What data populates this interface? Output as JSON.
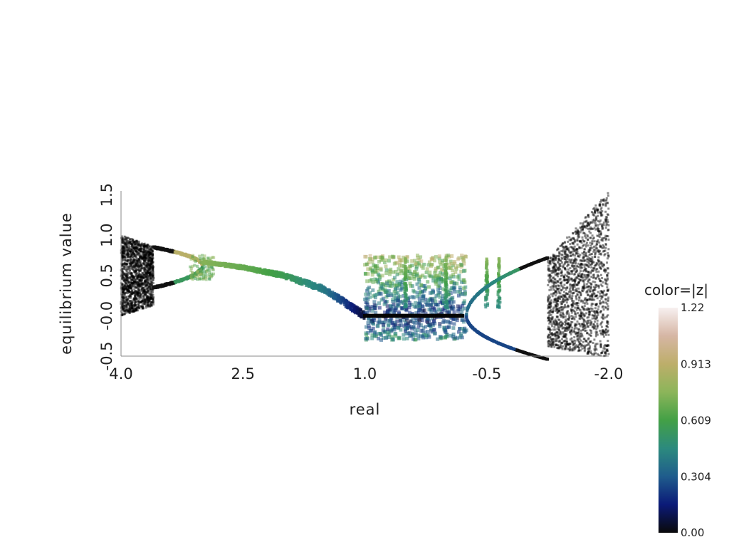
{
  "chart_data": {
    "type": "scatter",
    "xlabel": "real",
    "ylabel": "equilibrium value",
    "x_axis_reversed": true,
    "xlim": [
      4.0,
      -2.0
    ],
    "ylim": [
      -0.5,
      1.55
    ],
    "xticks": [
      {
        "value": 4.0,
        "label": "4.0"
      },
      {
        "value": 2.5,
        "label": "2.5"
      },
      {
        "value": 1.0,
        "label": "1.0"
      },
      {
        "value": -0.5,
        "label": "-0.5"
      },
      {
        "value": -2.0,
        "label": "-2.0"
      }
    ],
    "yticks": [
      {
        "value": -0.5,
        "label": "-0.5"
      },
      {
        "value": 0.0,
        "label": "-0.0"
      },
      {
        "value": 0.5,
        "label": "0.5"
      },
      {
        "value": 1.0,
        "label": "1.0"
      },
      {
        "value": 1.5,
        "label": "1.5"
      }
    ],
    "grid": false,
    "colorbar": {
      "title": "color=|z|",
      "range": [
        0.0,
        1.22
      ],
      "ticks": [
        {
          "value": 0.0,
          "label": "0.00"
        },
        {
          "value": 0.304,
          "label": "0.304"
        },
        {
          "value": 0.609,
          "label": "0.609"
        },
        {
          "value": 0.913,
          "label": "0.913"
        },
        {
          "value": 1.22,
          "label": "1.22"
        }
      ],
      "colormap": [
        "#0a0a0a",
        "#0b1a78",
        "#1f5c8c",
        "#2c8a7e",
        "#43a046",
        "#8cb55a",
        "#bdae6a",
        "#d6b6a4",
        "#f7f0f0"
      ]
    },
    "regions": {
      "chaotic_left": {
        "x_range": [
          4.0,
          3.6
        ],
        "y_range": [
          0.0,
          1.0
        ],
        "color": "#000000"
      },
      "period_two_left": {
        "x_range": [
          3.6,
          3.0
        ],
        "upper": [
          0.85,
          0.62
        ],
        "lower": [
          0.35,
          0.62
        ]
      },
      "fixed_point_curve": [
        {
          "x": 3.0,
          "y": 0.67
        },
        {
          "x": 2.5,
          "y": 0.6
        },
        {
          "x": 2.0,
          "y": 0.5
        },
        {
          "x": 1.5,
          "y": 0.33
        },
        {
          "x": 1.0,
          "y": 0.0
        }
      ],
      "zero_line": {
        "x_range": [
          1.0,
          -0.2
        ],
        "y": 0.0
      },
      "scatter_band": {
        "x_range": [
          1.0,
          -0.25
        ],
        "y_range": [
          -0.3,
          0.75
        ]
      },
      "period_two_right": {
        "x_range": [
          -0.25,
          -1.25
        ],
        "upper": [
          0.0,
          0.72
        ],
        "lower": [
          0.0,
          -0.72
        ]
      },
      "chaotic_right": {
        "x_range": [
          -1.25,
          -2.0
        ],
        "y_range": [
          -0.5,
          1.5
        ],
        "color": "#000000"
      }
    }
  }
}
